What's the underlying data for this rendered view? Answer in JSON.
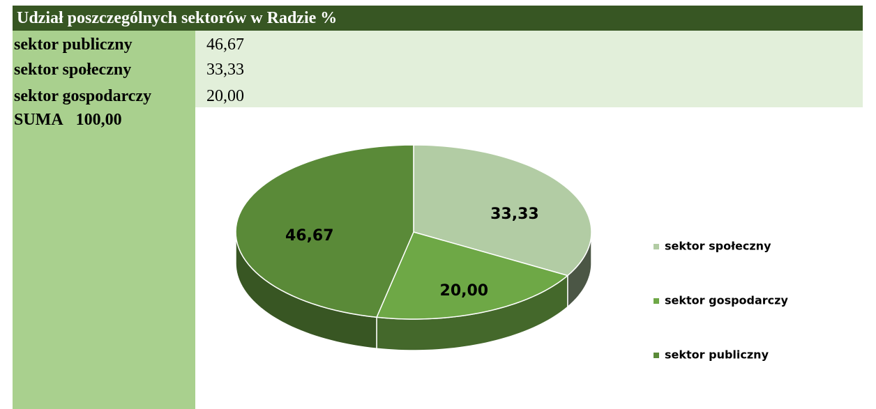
{
  "header": {
    "title": "Udział poszczególnych sektorów w Radzie %"
  },
  "table": {
    "rows": [
      [
        "sektor publiczny",
        "46,67"
      ],
      [
        "sektor społeczny",
        "33,33"
      ],
      [
        "sektor gospodarczy",
        "20,00"
      ]
    ],
    "sum": {
      "label": "SUMA",
      "value": "100,00"
    }
  },
  "chart_data": {
    "type": "pie",
    "categories": [
      "sektor społeczny",
      "sektor gospodarczy",
      "sektor publiczny"
    ],
    "values": [
      33.33,
      20,
      46.67
    ],
    "value_labels": [
      "33,33",
      "20,00",
      "46,67"
    ],
    "colors": [
      "#b2cca4",
      "#6ea846",
      "#5a8a38"
    ],
    "legend": "right"
  }
}
